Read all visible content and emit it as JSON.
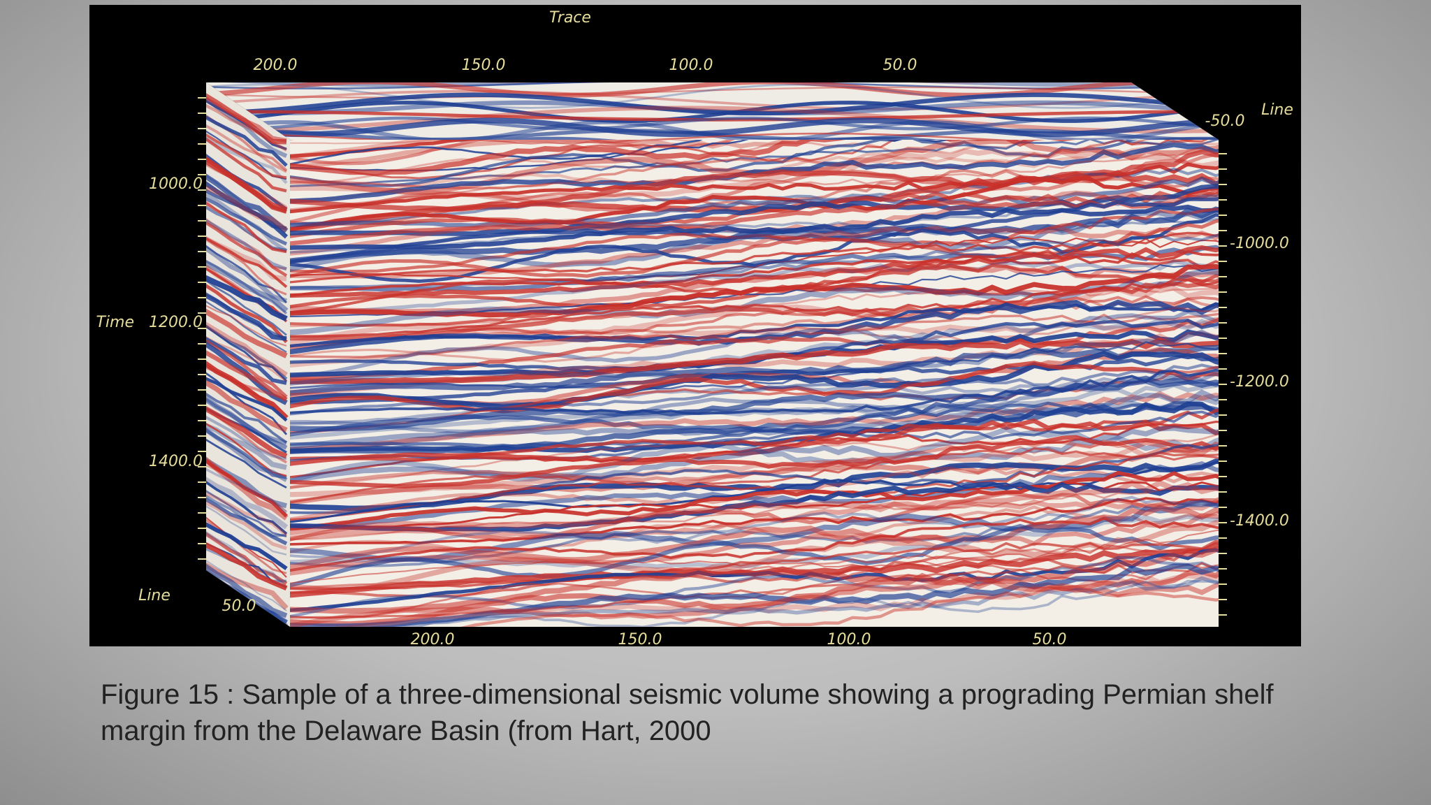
{
  "figure": {
    "axis_labels": {
      "trace": "Trace",
      "time": "Time",
      "line_right": "Line",
      "line_left": "Line"
    },
    "top_ticks": [
      "200.0",
      "150.0",
      "100.0",
      "50.0"
    ],
    "bottom_ticks": [
      "200.0",
      "150.0",
      "100.0",
      "50.0"
    ],
    "right_line_tick": "-50.0",
    "left_line_tick": "50.0",
    "right_time_ticks": [
      "-1000.0",
      "-1200.0",
      "-1400.0"
    ],
    "left_time_ticks": [
      "1000.0",
      "1200.0",
      "1400.0"
    ]
  },
  "caption": "Figure 15 : Sample of a three-dimensional seismic volume showing a prograding Permian shelf margin from the Delaware Basin (from Hart, 2000"
}
